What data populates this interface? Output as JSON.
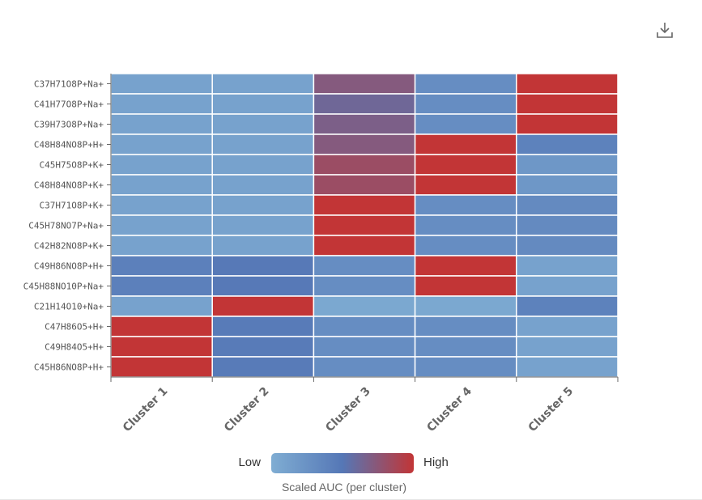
{
  "toolbar": {
    "download_icon": "download-icon"
  },
  "colors": {
    "low": "#7fadd3",
    "mid": "#5577b6",
    "high": "#c23536"
  },
  "legend": {
    "low_label": "Low",
    "high_label": "High",
    "caption": "Scaled AUC (per cluster)"
  },
  "chart_data": {
    "type": "heatmap",
    "title": "",
    "xlabel": "",
    "ylabel": "",
    "x": [
      "Cluster 1",
      "Cluster 2",
      "Cluster 3",
      "Cluster 4",
      "Cluster 5"
    ],
    "y": [
      "C37H71O8P+Na+",
      "C41H77O8P+Na+",
      "C39H73O8P+Na+",
      "C48H84NO8P+H+",
      "C45H75O8P+K+",
      "C48H84NO8P+K+",
      "C37H71O8P+K+",
      "C45H78NO7P+Na+",
      "C42H82NO8P+K+",
      "C49H86NO8P+H+",
      "C45H88NO10P+Na+",
      "C21H14O10+Na+",
      "C47H86O5+H+",
      "C49H84O5+H+",
      "C45H86NO8P+H+"
    ],
    "values": [
      [
        0.1,
        0.1,
        0.72,
        0.3,
        1.0
      ],
      [
        0.1,
        0.1,
        0.62,
        0.3,
        1.0
      ],
      [
        0.1,
        0.1,
        0.68,
        0.3,
        1.0
      ],
      [
        0.1,
        0.1,
        0.72,
        1.0,
        0.4
      ],
      [
        0.1,
        0.1,
        0.82,
        1.0,
        0.2
      ],
      [
        0.1,
        0.1,
        0.82,
        1.0,
        0.2
      ],
      [
        0.1,
        0.1,
        1.0,
        0.3,
        0.32
      ],
      [
        0.1,
        0.1,
        1.0,
        0.3,
        0.32
      ],
      [
        0.1,
        0.1,
        1.0,
        0.3,
        0.32
      ],
      [
        0.42,
        0.48,
        0.3,
        1.0,
        0.1
      ],
      [
        0.42,
        0.48,
        0.3,
        1.0,
        0.1
      ],
      [
        0.1,
        1.0,
        0.05,
        0.05,
        0.4
      ],
      [
        1.0,
        0.46,
        0.3,
        0.3,
        0.1
      ],
      [
        1.0,
        0.46,
        0.3,
        0.3,
        0.1
      ],
      [
        1.0,
        0.46,
        0.3,
        0.3,
        0.1
      ]
    ],
    "range": [
      0,
      1
    ],
    "grid": true,
    "legend_position": "bottom"
  }
}
